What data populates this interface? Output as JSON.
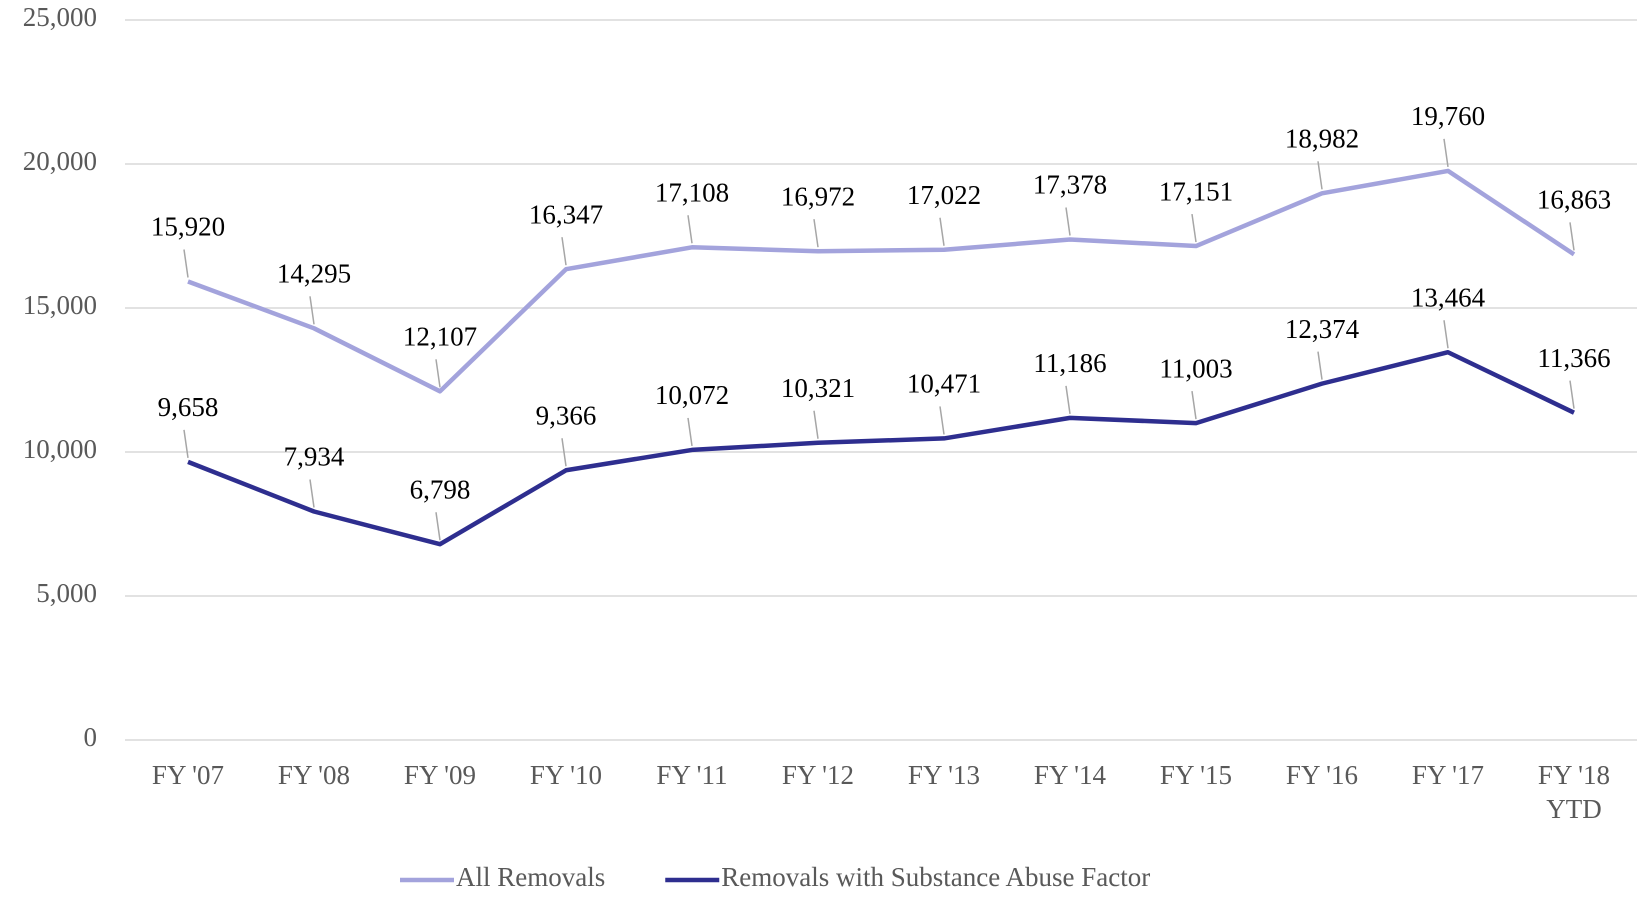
{
  "chart_data": {
    "type": "line",
    "categories": [
      "FY '07",
      "FY '08",
      "FY '09",
      "FY '10",
      "FY '11",
      "FY '12",
      "FY '13",
      "FY '14",
      "FY '15",
      "FY '16",
      "FY '17",
      "FY '18 YTD"
    ],
    "series": [
      {
        "name": "All Removals",
        "color": "#a3a3dc",
        "values": [
          15920,
          14295,
          12107,
          16347,
          17108,
          16972,
          17022,
          17378,
          17151,
          18982,
          19760,
          16863
        ],
        "value_labels": [
          "15,920",
          "14,295",
          "12,107",
          "16,347",
          "17,108",
          "16,972",
          "17,022",
          "17,378",
          "17,151",
          "18,982",
          "19,760",
          "16,863"
        ]
      },
      {
        "name": "Removals with Substance Abuse Factor",
        "color": "#2e2e8f",
        "values": [
          9658,
          7934,
          6798,
          9366,
          10072,
          10321,
          10471,
          11186,
          11003,
          12374,
          13464,
          11366
        ],
        "value_labels": [
          "9,658",
          "7,934",
          "6,798",
          "9,366",
          "10,072",
          "10,321",
          "10,471",
          "11,186",
          "11,003",
          "12,374",
          "13,464",
          "11,366"
        ]
      }
    ],
    "ylim": [
      0,
      25000
    ],
    "yticks": [
      {
        "value": 0,
        "label": "0"
      },
      {
        "value": 5000,
        "label": "5,000"
      },
      {
        "value": 10000,
        "label": "10,000"
      },
      {
        "value": 15000,
        "label": "15,000"
      },
      {
        "value": 20000,
        "label": "20,000"
      },
      {
        "value": 25000,
        "label": "25,000"
      }
    ],
    "grid": true,
    "legend": "bottom"
  }
}
